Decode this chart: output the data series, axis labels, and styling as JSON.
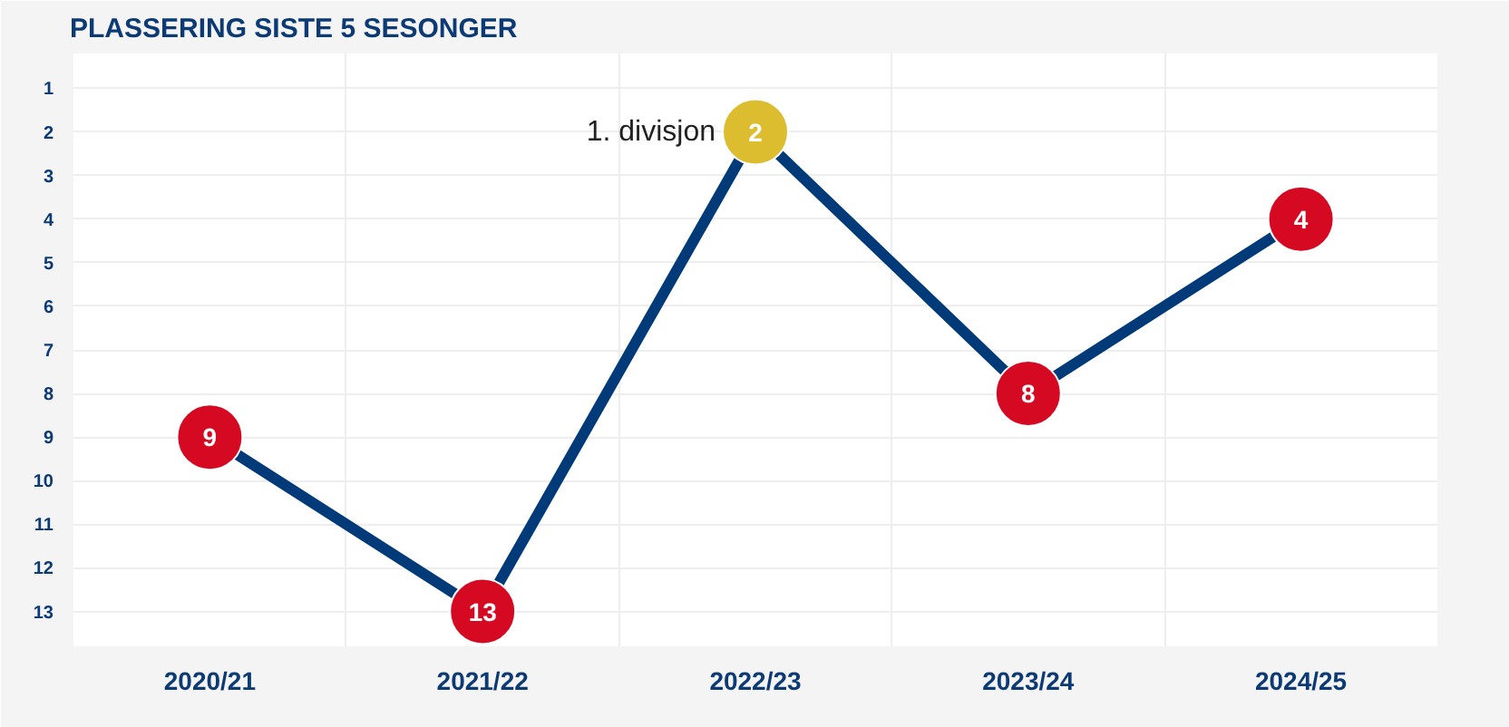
{
  "chart_data": {
    "type": "line",
    "title": "PLASSERING SISTE 5 SESONGER",
    "categories": [
      "2020/21",
      "2021/22",
      "2022/23",
      "2023/24",
      "2024/25"
    ],
    "series": [
      {
        "color": "#003a78",
        "values": [
          9,
          13,
          2,
          8,
          4
        ],
        "colors": [
          "#d50a22",
          "#d50a22",
          "#dcbd30",
          "#d50a22",
          "#d50a22"
        ]
      }
    ],
    "ylim": [
      13.8,
      0.2
    ],
    "yticks": [
      1,
      2,
      3,
      4,
      5,
      6,
      7,
      8,
      9,
      10,
      11,
      12,
      13
    ],
    "grid": true,
    "marker": "circle",
    "line_style": "solid",
    "data_labels": true,
    "annotations": [
      {
        "text": "1. divisjon",
        "x": "2022/23",
        "y": 2
      }
    ]
  }
}
